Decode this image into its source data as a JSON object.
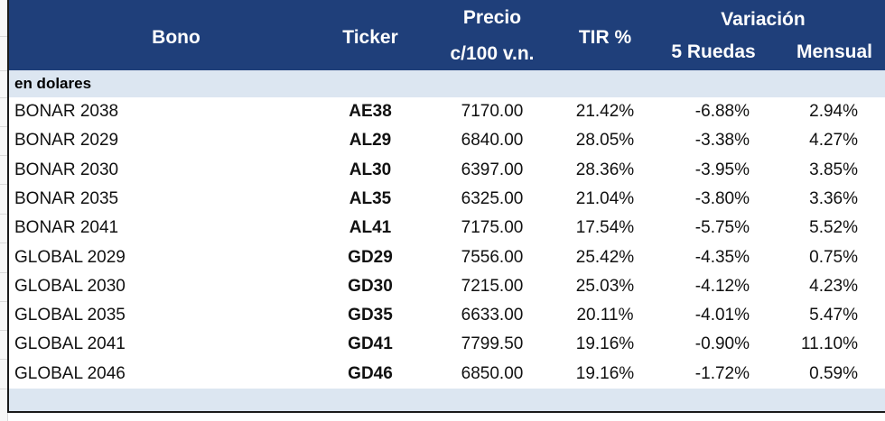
{
  "header": {
    "bono": "Bono",
    "ticker": "Ticker",
    "precio_line1": "Precio",
    "precio_line2": "c/100 v.n.",
    "tir": "TIR %",
    "variacion": "Variación",
    "ruedas": "5 Ruedas",
    "mensual": "Mensual"
  },
  "section_label": "en dolares",
  "colors": {
    "header_bg": "#1f3f7a",
    "section_bg": "#dce6f1"
  },
  "rows": [
    {
      "bono": "BONAR 2038",
      "ticker": "AE38",
      "precio": "7170.00",
      "tir": "21.42%",
      "r5": "-6.88%",
      "mensual": "2.94%"
    },
    {
      "bono": "BONAR 2029",
      "ticker": "AL29",
      "precio": "6840.00",
      "tir": "28.05%",
      "r5": "-3.38%",
      "mensual": "4.27%"
    },
    {
      "bono": "BONAR 2030",
      "ticker": "AL30",
      "precio": "6397.00",
      "tir": "28.36%",
      "r5": "-3.95%",
      "mensual": "3.85%"
    },
    {
      "bono": "BONAR 2035",
      "ticker": "AL35",
      "precio": "6325.00",
      "tir": "21.04%",
      "r5": "-3.80%",
      "mensual": "3.36%"
    },
    {
      "bono": "BONAR 2041",
      "ticker": "AL41",
      "precio": "7175.00",
      "tir": "17.54%",
      "r5": "-5.75%",
      "mensual": "5.52%"
    },
    {
      "bono": "GLOBAL 2029",
      "ticker": "GD29",
      "precio": "7556.00",
      "tir": "25.42%",
      "r5": "-4.35%",
      "mensual": "0.75%"
    },
    {
      "bono": "GLOBAL 2030",
      "ticker": "GD30",
      "precio": "7215.00",
      "tir": "25.03%",
      "r5": "-4.12%",
      "mensual": "4.23%"
    },
    {
      "bono": "GLOBAL 2035",
      "ticker": "GD35",
      "precio": "6633.00",
      "tir": "20.11%",
      "r5": "-4.01%",
      "mensual": "5.47%"
    },
    {
      "bono": "GLOBAL 2041",
      "ticker": "GD41",
      "precio": "7799.50",
      "tir": "19.16%",
      "r5": "-0.90%",
      "mensual": "11.10%"
    },
    {
      "bono": "GLOBAL 2046",
      "ticker": "GD46",
      "precio": "6850.00",
      "tir": "19.16%",
      "r5": "-1.72%",
      "mensual": "0.59%"
    }
  ]
}
